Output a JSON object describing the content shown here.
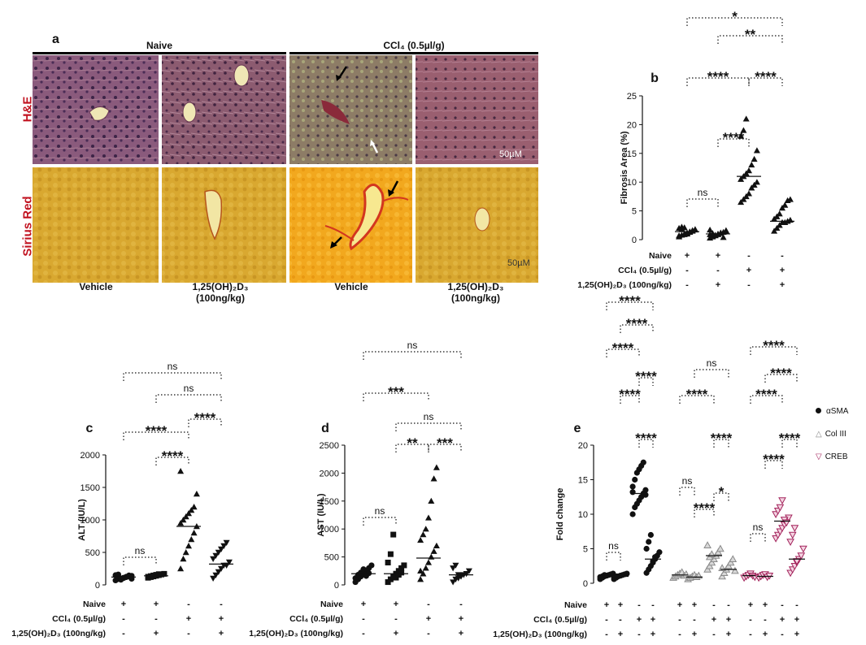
{
  "panel_a": {
    "letter": "a",
    "group_naive": "Naive",
    "group_ccl4": "CCl₄ (0.5µl/g)",
    "row_he": "H&E",
    "row_sirius": "Sirius Red",
    "scale_he": "50µM",
    "scale_sr": "50µM",
    "captions": [
      "Vehicle",
      "1,25(OH)₂D₃\n(100ng/kg)",
      "Vehicle",
      "1,25(OH)₂D₃\n(100ng/kg)"
    ],
    "colors": {
      "he": "#8a5a7c",
      "he_ccl4_a": "#8f7e6a",
      "sirius": "#d9a52a",
      "sirius_ccl4": "#f0a020",
      "stain_label": "#c1121f"
    }
  },
  "treatment_rows": {
    "naive": "Naive",
    "ccl4": "CCl₄ (0.5µl/g)",
    "vitd": "1,25(OH)₂D₃ (100ng/kg)",
    "naive_signs": [
      "+",
      "+",
      "-",
      "-"
    ],
    "ccl4_signs": [
      "-",
      "-",
      "+",
      "+"
    ],
    "vitd_signs": [
      "-",
      "+",
      "-",
      "+"
    ]
  },
  "chart_data": [
    {
      "panel": "b",
      "type": "scatter",
      "ylabel": "Fibrosis Area (%)",
      "ylim": [
        0,
        25
      ],
      "yticks": [
        0,
        5,
        10,
        15,
        20,
        25
      ],
      "groups": 4,
      "marker": "triangle",
      "series": [
        {
          "values": [
            0.5,
            0.8,
            1.0,
            1.2,
            1.4,
            1.6,
            1.8,
            2.0,
            2.2,
            0.9,
            1.1,
            1.3,
            1.5,
            1.7,
            0.7,
            1.9,
            2.1,
            1.0
          ],
          "median": 1.4
        },
        {
          "values": [
            0.3,
            0.5,
            0.7,
            0.9,
            1.1,
            1.3,
            1.5,
            1.7,
            0.6,
            0.8,
            1.0,
            1.2,
            0.4,
            1.6,
            0.9,
            1.1
          ],
          "median": 1.0
        },
        {
          "values": [
            6.5,
            7.0,
            7.5,
            8.0,
            9.0,
            9.5,
            10.0,
            10.5,
            11.0,
            11.5,
            12.0,
            13.0,
            14.0,
            15.5,
            18.0,
            19.0,
            21.0
          ],
          "median": 11.0
        },
        {
          "values": [
            1.5,
            2.0,
            2.5,
            3.0,
            3.0,
            3.2,
            3.4,
            3.6,
            4.0,
            4.5,
            5.5,
            6.0,
            6.8,
            7.0
          ],
          "median": 3.2
        }
      ],
      "brackets": [
        {
          "from": 0,
          "to": 1,
          "label": "ns"
        },
        {
          "from": 1,
          "to": 2,
          "label": "****"
        },
        {
          "from": 0,
          "to": 2,
          "label": "****"
        },
        {
          "from": 2,
          "to": 3,
          "label": "****"
        },
        {
          "from": 1,
          "to": 3,
          "label": "**"
        },
        {
          "from": 0,
          "to": 3,
          "label": "*"
        }
      ]
    },
    {
      "panel": "c",
      "type": "scatter",
      "ylabel": "ALT (IU/L)",
      "ylim": [
        0,
        2000
      ],
      "yticks": [
        0,
        500,
        1000,
        1500,
        2000
      ],
      "groups": 4,
      "series": [
        {
          "marker": "circle",
          "values": [
            70,
            90,
            100,
            110,
            120,
            130,
            140,
            150,
            160,
            80,
            105,
            125,
            145,
            95
          ],
          "median": 120
        },
        {
          "marker": "square",
          "values": [
            110,
            120,
            130,
            140,
            150,
            160,
            170,
            125,
            135,
            145,
            155,
            165
          ],
          "median": 140
        },
        {
          "marker": "triangle",
          "values": [
            250,
            400,
            500,
            600,
            700,
            800,
            900,
            950,
            1000,
            1050,
            1100,
            1150,
            1200,
            1400,
            1750
          ],
          "median": 900
        },
        {
          "marker": "triangle-down",
          "values": [
            100,
            150,
            200,
            250,
            300,
            300,
            350,
            400,
            450,
            500,
            550,
            600,
            650
          ],
          "median": 320
        }
      ],
      "brackets": [
        {
          "from": 0,
          "to": 1,
          "label": "ns"
        },
        {
          "from": 1,
          "to": 2,
          "label": "****"
        },
        {
          "from": 0,
          "to": 2,
          "label": "****"
        },
        {
          "from": 2,
          "to": 3,
          "label": "****"
        },
        {
          "from": 1,
          "to": 3,
          "label": "ns"
        },
        {
          "from": 0,
          "to": 3,
          "label": "ns"
        }
      ]
    },
    {
      "panel": "d",
      "type": "scatter",
      "ylabel": "AST (IU/L)",
      "ylim": [
        0,
        2500
      ],
      "yticks": [
        0,
        500,
        1000,
        1500,
        2000,
        2500
      ],
      "groups": 4,
      "series": [
        {
          "marker": "circle",
          "values": [
            50,
            100,
            150,
            200,
            250,
            300,
            350,
            120,
            180,
            220,
            280,
            160,
            210
          ],
          "median": 200
        },
        {
          "marker": "square",
          "values": [
            50,
            100,
            150,
            200,
            250,
            300,
            350,
            400,
            550,
            900,
            130,
            180,
            220
          ],
          "median": 200
        },
        {
          "marker": "triangle",
          "values": [
            100,
            200,
            300,
            400,
            500,
            600,
            700,
            800,
            900,
            1000,
            1200,
            1500,
            1900,
            2100,
            250
          ],
          "median": 480
        },
        {
          "marker": "triangle-down",
          "values": [
            50,
            100,
            120,
            150,
            180,
            200,
            250,
            300,
            350,
            180,
            160
          ],
          "median": 180
        }
      ],
      "brackets": [
        {
          "from": 0,
          "to": 1,
          "label": "ns"
        },
        {
          "from": 1,
          "to": 2,
          "label": "**"
        },
        {
          "from": 2,
          "to": 3,
          "label": "***"
        },
        {
          "from": 1,
          "to": 3,
          "label": "ns"
        },
        {
          "from": 0,
          "to": 2,
          "label": "***"
        },
        {
          "from": 0,
          "to": 3,
          "label": "ns"
        }
      ]
    },
    {
      "panel": "e",
      "type": "scatter",
      "ylabel": "Fold change",
      "ylim": [
        0,
        20
      ],
      "yticks": [
        0,
        5,
        10,
        15,
        20
      ],
      "legend": [
        {
          "name": "αSMA",
          "marker": "circle",
          "color": "#111111"
        },
        {
          "name": "Col III",
          "marker": "triangle-open",
          "color": "#8a8a8a"
        },
        {
          "name": "CREB",
          "marker": "triangle-down-open",
          "color": "#a3245c"
        }
      ],
      "genes": [
        {
          "name": "αSMA",
          "color": "#111111",
          "groups": [
            {
              "values": [
                0.6,
                0.8,
                1.0,
                1.1,
                1.2,
                1.3,
                1.4,
                0.9,
                1.0,
                1.2
              ],
              "median": 1.0
            },
            {
              "values": [
                0.6,
                0.8,
                1.0,
                1.1,
                1.2,
                1.3,
                1.4,
                0.9,
                1.0
              ],
              "median": 1.0
            },
            {
              "values": [
                10.0,
                11.0,
                11.5,
                12.0,
                12.5,
                13.0,
                13.5,
                14.0,
                15.0,
                16.0,
                16.5,
                17.0,
                17.5,
                12.8,
                13.2
              ],
              "median": 13.0
            },
            {
              "values": [
                1.5,
                2.0,
                2.5,
                3.0,
                3.5,
                4.0,
                4.5,
                5.0,
                6.0,
                7.0,
                3.2,
                3.8
              ],
              "median": 3.5
            }
          ]
        },
        {
          "name": "Col III",
          "color": "#8a8a8a",
          "groups": [
            {
              "values": [
                0.8,
                1.0,
                1.2,
                1.4,
                1.6,
                1.1,
                1.3
              ],
              "median": 1.2
            },
            {
              "values": [
                0.6,
                0.8,
                1.0,
                1.2,
                0.9,
                1.1
              ],
              "median": 0.9
            },
            {
              "values": [
                2.0,
                2.5,
                3.0,
                3.5,
                4.0,
                4.5,
                5.0,
                5.5,
                3.8,
                4.2
              ],
              "median": 4.0
            },
            {
              "values": [
                1.0,
                1.5,
                2.0,
                2.5,
                3.0,
                3.5,
                1.8,
                2.2
              ],
              "median": 2.0
            }
          ]
        },
        {
          "name": "CREB",
          "color": "#a3245c",
          "groups": [
            {
              "values": [
                0.8,
                1.0,
                1.2,
                1.4,
                1.1,
                0.9
              ],
              "median": 1.1
            },
            {
              "values": [
                0.8,
                1.0,
                1.2,
                1.3,
                0.9,
                1.1
              ],
              "median": 1.0
            },
            {
              "values": [
                6.5,
                7.0,
                7.5,
                8.0,
                8.5,
                9.0,
                9.5,
                10.0,
                10.5,
                11.0,
                12.0,
                9.2,
                8.8
              ],
              "median": 9.0
            },
            {
              "values": [
                1.5,
                2.0,
                2.5,
                3.0,
                3.5,
                4.0,
                5.0,
                6.0,
                7.0,
                8.0,
                3.2
              ],
              "median": 3.5
            }
          ]
        }
      ],
      "brackets": [
        [
          {
            "from": 0,
            "to": 1,
            "label": "ns"
          },
          {
            "from": 2,
            "to": 3,
            "label": "****"
          },
          {
            "from": 1,
            "to": 2,
            "label": "****"
          },
          {
            "from": 2,
            "to": 3,
            "label": "****"
          },
          {
            "from": 0,
            "to": 2,
            "label": "****"
          },
          {
            "from": 1,
            "to": 3,
            "label": "****"
          },
          {
            "from": 0,
            "to": 3,
            "label": "****"
          }
        ],
        [
          {
            "from": 0,
            "to": 1,
            "label": "ns"
          },
          {
            "from": 1,
            "to": 2,
            "label": "****"
          },
          {
            "from": 2,
            "to": 3,
            "label": "*"
          },
          {
            "from": 2,
            "to": 3,
            "label": "****"
          },
          {
            "from": 0,
            "to": 2,
            "label": "****"
          },
          {
            "from": 1,
            "to": 3,
            "label": "ns"
          }
        ],
        [
          {
            "from": 0,
            "to": 1,
            "label": "ns"
          },
          {
            "from": 1,
            "to": 2,
            "label": "****"
          },
          {
            "from": 2,
            "to": 3,
            "label": "****"
          },
          {
            "from": 0,
            "to": 2,
            "label": "****"
          },
          {
            "from": 1,
            "to": 3,
            "label": "****"
          },
          {
            "from": 0,
            "to": 3,
            "label": "****"
          }
        ]
      ]
    }
  ]
}
